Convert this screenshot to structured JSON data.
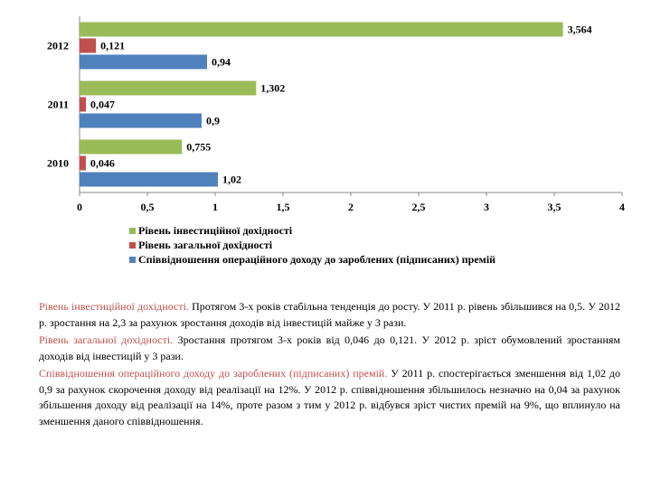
{
  "chart_data": {
    "type": "bar",
    "orientation": "horizontal",
    "categories": [
      "2012",
      "2011",
      "2010"
    ],
    "series": [
      {
        "name": "Рівень інвестиційної дохідності",
        "color": "#9bbb59",
        "values": [
          3.564,
          1.302,
          0.755
        ],
        "labels": [
          "3,564",
          "1,302",
          "0,755"
        ]
      },
      {
        "name": "Рівень загальної дохідності",
        "color": "#c0504d",
        "values": [
          0.121,
          0.047,
          0.046
        ],
        "labels": [
          "0,121",
          "0,047",
          "0,046"
        ]
      },
      {
        "name": "Співвідношення операційного доходу до зароблених (підписаних) премій",
        "color": "#4f81bd",
        "values": [
          0.94,
          0.9,
          1.02
        ],
        "labels": [
          "0,94",
          "0,9",
          "1,02"
        ]
      }
    ],
    "xlim": [
      0,
      4
    ],
    "ticks": [
      0,
      0.5,
      1,
      1.5,
      2,
      2.5,
      3,
      3.5,
      4
    ],
    "tick_labels": [
      "0",
      "0,5",
      "1",
      "1,5",
      "2",
      "2,5",
      "3",
      "3,5",
      "4"
    ],
    "legend_position": "bottom",
    "grid": false
  },
  "description": [
    {
      "title": "Рівень інвестиційної дохідності.",
      "text": " Протягом 3-х років стабільна тенденція до росту. У 2011 р. рівень збільшився на 0,5. У 2012 р. зростання на 2,3 за рахунок зростання доходів від інвестицій майже у 3 рази."
    },
    {
      "title": "Рівень загальної дохідності.",
      "text": " Зростання протягом 3-х років від 0,046 до 0,121. У 2012 р. зріст обумовлений зростанням доходів від інвестицій у 3 рази."
    },
    {
      "title": "Співвідношення операційного доходу до зароблених (підписаних) премій.",
      "text": " У 2011 р. спостерігається зменшення від 1,02 до 0,9 за рахунок скорочення доходу від реалізації на 12%. У 2012 р. співвідношення збільшилось незначно на 0,04 за рахунок збільшення доходу від реалізації на 14%, проте разом з тим у 2012 р. відбувся зріст чистих премій на 9%, що вплинуло на зменшення даного співвідношення."
    }
  ]
}
